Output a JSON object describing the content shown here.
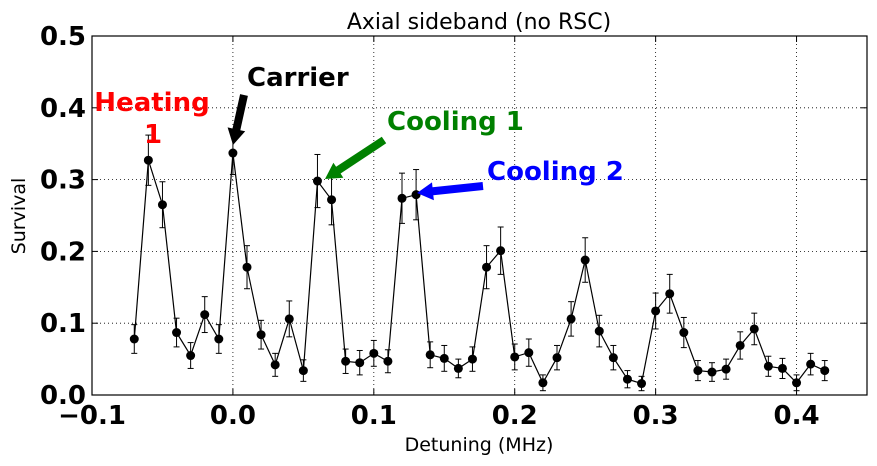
{
  "chart_data": {
    "type": "line",
    "title": "Axial sideband (no RSC)",
    "xlabel": "Detuning (MHz)",
    "ylabel": "Survival",
    "xlim": [
      -0.1,
      0.45
    ],
    "ylim": [
      0.0,
      0.5
    ],
    "grid": true,
    "x_ticks": [
      -0.1,
      0.0,
      0.1,
      0.2,
      0.3,
      0.4
    ],
    "x_tick_labels": [
      "−0.1",
      "0.0",
      "0.1",
      "0.2",
      "0.3",
      "0.4"
    ],
    "y_ticks": [
      0.0,
      0.1,
      0.2,
      0.3,
      0.4,
      0.5
    ],
    "y_tick_labels": [
      "0.0",
      "0.1",
      "0.2",
      "0.3",
      "0.4",
      "0.5"
    ],
    "series": [
      {
        "color": "#000000",
        "marker": "circle",
        "x": [
          -0.07,
          -0.06,
          -0.05,
          -0.04,
          -0.03,
          -0.02,
          -0.01,
          0.0,
          0.01,
          0.02,
          0.03,
          0.04,
          0.05,
          0.06,
          0.07,
          0.08,
          0.09,
          0.1,
          0.11,
          0.12,
          0.13,
          0.14,
          0.15,
          0.16,
          0.17,
          0.18,
          0.19,
          0.2,
          0.21,
          0.22,
          0.23,
          0.24,
          0.25,
          0.26,
          0.27,
          0.28,
          0.29,
          0.3,
          0.31,
          0.32,
          0.33,
          0.34,
          0.35,
          0.36,
          0.37,
          0.38,
          0.39,
          0.4,
          0.41,
          0.42
        ],
        "y": [
          0.078,
          0.327,
          0.265,
          0.087,
          0.055,
          0.112,
          0.078,
          0.337,
          0.178,
          0.084,
          0.042,
          0.106,
          0.034,
          0.298,
          0.272,
          0.047,
          0.045,
          0.058,
          0.047,
          0.274,
          0.279,
          0.056,
          0.051,
          0.037,
          0.05,
          0.178,
          0.201,
          0.053,
          0.059,
          0.017,
          0.052,
          0.106,
          0.188,
          0.089,
          0.052,
          0.022,
          0.016,
          0.117,
          0.141,
          0.087,
          0.034,
          0.032,
          0.036,
          0.069,
          0.092,
          0.04,
          0.037,
          0.017,
          0.043,
          0.034
        ],
        "yerr": [
          0.02,
          0.035,
          0.032,
          0.02,
          0.018,
          0.025,
          0.02,
          0.03,
          0.03,
          0.02,
          0.016,
          0.025,
          0.015,
          0.037,
          0.035,
          0.017,
          0.017,
          0.018,
          0.016,
          0.035,
          0.035,
          0.018,
          0.018,
          0.013,
          0.017,
          0.03,
          0.033,
          0.018,
          0.019,
          0.011,
          0.017,
          0.024,
          0.031,
          0.022,
          0.017,
          0.012,
          0.01,
          0.025,
          0.027,
          0.021,
          0.014,
          0.013,
          0.014,
          0.019,
          0.022,
          0.014,
          0.014,
          0.011,
          0.015,
          0.014
        ]
      }
    ],
    "annotations": [
      {
        "text": "Heating",
        "color": "#ff0000"
      },
      {
        "text": "1",
        "color": "#ff0000"
      },
      {
        "text": "Carrier",
        "color": "#000000"
      },
      {
        "text": "Cooling 1",
        "color": "#008000"
      },
      {
        "text": "Cooling 2",
        "color": "#0000ff"
      }
    ]
  }
}
